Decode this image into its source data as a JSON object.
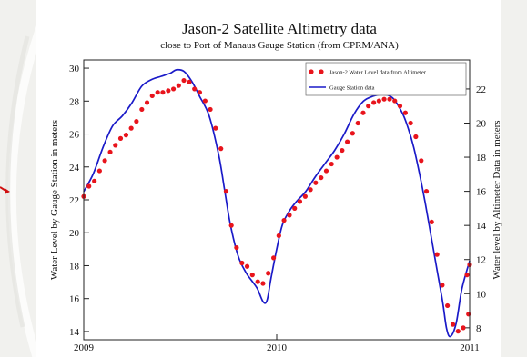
{
  "chart_data": {
    "type": "line",
    "title": "Jason-2 Satellite Altimetry data",
    "subtitle": "close to Port of Manaus Gauge Station (from CPRM/ANA)",
    "ylabel_left": "Water Level by Gauge Station in meters",
    "ylabel_right": "Water level by Altimeter Data in meters",
    "x_ticks": [
      "2009",
      "2010",
      "2011"
    ],
    "xlim": [
      2009,
      2011
    ],
    "ylim_left": [
      13.5,
      30.5
    ],
    "ylim_right": [
      7.3,
      23.7
    ],
    "y_ticks_left": [
      14,
      16,
      18,
      20,
      22,
      24,
      26,
      28,
      30
    ],
    "y_ticks_right": [
      8,
      10,
      12,
      14,
      16,
      18,
      20,
      22
    ],
    "legend_position": "top-right",
    "series": [
      {
        "name": "Jason-2 Water Level data from Altimeter",
        "style": "markers",
        "color": "#e8141c",
        "axis": "right",
        "x": [
          2009.0,
          2009.027,
          2009.055,
          2009.082,
          2009.109,
          2009.137,
          2009.164,
          2009.191,
          2009.219,
          2009.246,
          2009.273,
          2009.301,
          2009.328,
          2009.355,
          2009.383,
          2009.41,
          2009.438,
          2009.465,
          2009.492,
          2009.519,
          2009.547,
          2009.574,
          2009.601,
          2009.629,
          2009.656,
          2009.683,
          2009.711,
          2009.738,
          2009.765,
          2009.792,
          2009.82,
          2009.847,
          2009.874,
          2009.902,
          2009.929,
          2009.956,
          2009.984,
          2010.011,
          2010.038,
          2010.066,
          2010.093,
          2010.12,
          2010.148,
          2010.175,
          2010.202,
          2010.23,
          2010.257,
          2010.284,
          2010.312,
          2010.339,
          2010.366,
          2010.393,
          2010.421,
          2010.448,
          2010.475,
          2010.503,
          2010.53,
          2010.557,
          2010.585,
          2010.612,
          2010.639,
          2010.667,
          2010.694,
          2010.721,
          2010.749,
          2010.776,
          2010.803,
          2010.831,
          2010.858,
          2010.885,
          2010.913,
          2010.94,
          2010.967,
          2010.994
        ],
        "values": [
          15.7,
          16.3,
          16.6,
          17.2,
          17.8,
          18.3,
          18.7,
          19.1,
          19.3,
          19.7,
          20.1,
          20.8,
          21.2,
          21.6,
          21.8,
          21.8,
          21.9,
          22.0,
          22.2,
          22.5,
          22.4,
          22.0,
          21.8,
          21.3,
          20.8,
          19.7,
          18.5,
          16.0,
          14.0,
          12.7,
          11.8,
          11.6,
          11.1,
          10.7,
          10.6,
          11.2,
          12.1,
          13.4,
          14.3,
          14.6,
          15.0,
          15.4,
          15.7,
          16.1,
          16.5,
          16.8,
          17.2,
          17.6,
          18.0,
          18.4,
          18.9,
          19.4,
          20.0,
          20.6,
          21.0,
          21.2,
          21.3,
          21.4,
          21.4,
          21.3,
          21.0,
          20.6,
          20.0,
          19.2,
          17.8,
          16.0,
          14.2,
          12.3,
          10.5,
          9.3,
          8.2,
          7.8,
          8.0,
          8.8
        ],
        "extra_x": [
          2010.986,
          2011.0
        ],
        "extra_values": [
          11.1,
          11.7
        ]
      },
      {
        "name": "Gauge Station data",
        "style": "line",
        "color": "#1a1ac8",
        "axis": "left",
        "x": [
          2009.0,
          2009.05,
          2009.1,
          2009.15,
          2009.2,
          2009.25,
          2009.3,
          2009.35,
          2009.4,
          2009.45,
          2009.48,
          2009.52,
          2009.56,
          2009.6,
          2009.65,
          2009.7,
          2009.73,
          2009.76,
          2009.8,
          2009.84,
          2009.87,
          2009.9,
          2009.93,
          2009.95,
          2009.97,
          2010.0,
          2010.03,
          2010.07,
          2010.11,
          2010.15,
          2010.2,
          2010.25,
          2010.3,
          2010.35,
          2010.4,
          2010.45,
          2010.5,
          2010.55,
          2010.6,
          2010.65,
          2010.68,
          2010.71,
          2010.74,
          2010.77,
          2010.8,
          2010.83,
          2010.86,
          2010.88,
          2010.9,
          2010.93,
          2010.96,
          2011.0
        ],
        "values": [
          22.5,
          23.6,
          25.2,
          26.5,
          27.1,
          27.9,
          28.9,
          29.3,
          29.5,
          29.7,
          29.9,
          29.8,
          29.2,
          28.3,
          27.1,
          24.7,
          22.6,
          20.5,
          18.6,
          17.6,
          17.1,
          16.6,
          15.8,
          15.9,
          17.2,
          19.0,
          20.5,
          21.4,
          22.0,
          22.5,
          23.4,
          24.2,
          25.0,
          26.0,
          27.2,
          28.0,
          28.3,
          28.4,
          28.2,
          27.3,
          26.4,
          25.2,
          23.6,
          21.8,
          19.8,
          17.8,
          15.8,
          14.2,
          13.7,
          14.5,
          16.6,
          18.3
        ]
      }
    ]
  }
}
